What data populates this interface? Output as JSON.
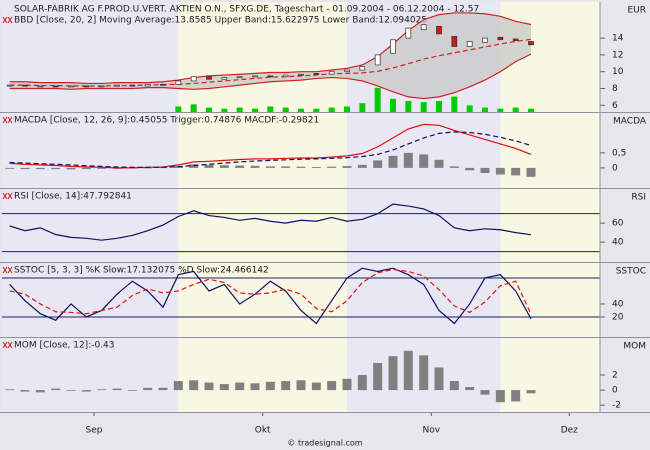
{
  "x_axis": {
    "x": [
      0,
      2,
      4,
      6,
      8,
      10,
      12,
      14,
      16,
      18,
      20,
      22,
      24,
      26,
      28,
      30,
      32,
      34,
      36,
      38,
      40,
      42,
      44,
      46,
      48,
      50,
      52,
      54,
      56,
      58,
      60,
      62,
      64,
      66,
      68
    ],
    "xlim": [
      -1,
      77
    ],
    "xticks": [
      {
        "value": 11,
        "label": "Sep"
      },
      {
        "value": 33,
        "label": "Okt"
      },
      {
        "value": 55,
        "label": "Nov"
      },
      {
        "value": 73,
        "label": "Dez"
      }
    ]
  },
  "watermark": "© tradesignal.com",
  "chart_data": [
    {
      "type": "candlestick",
      "title": "SOLAR-FABRIK AG F.PROD.U.VERT. AKTIEN O.N., SFXG.DE, Tageschart - 01.09.2004 - 06.12.2004 - 12.57",
      "legend": "BBD [Close, 20, 2] Moving Average:13.8585 Upper Band:15.622975 Lower Band:12.094025",
      "axis_label": "EUR",
      "ylim": [
        5.2,
        18.3
      ],
      "yticks": [
        6,
        8,
        10,
        12,
        14
      ],
      "open": [
        8.3,
        8.4,
        8.2,
        8.3,
        8.2,
        8.3,
        8.2,
        8.3,
        8.4,
        8.3,
        8.5,
        8.5,
        8.9,
        9.4,
        9.1,
        9.3,
        9.4,
        9.5,
        9.4,
        9.6,
        9.8,
        9.7,
        10.0,
        10.2,
        10.8,
        12.2,
        14.0,
        15.0,
        15.4,
        14.2,
        13.0,
        13.5,
        14.1,
        13.9,
        13.6
      ],
      "close": [
        8.4,
        8.3,
        8.3,
        8.2,
        8.3,
        8.2,
        8.3,
        8.4,
        8.3,
        8.5,
        8.4,
        8.9,
        9.4,
        9.1,
        9.3,
        9.4,
        9.5,
        9.4,
        9.6,
        9.7,
        9.7,
        10.0,
        10.2,
        10.6,
        12.0,
        13.8,
        15.2,
        15.6,
        14.5,
        13.0,
        13.6,
        14.0,
        13.8,
        13.7,
        13.2
      ],
      "up_color": "#ffffff",
      "down_color": "#d01818",
      "band_fill": "#c8c8c8",
      "series": [
        {
          "style": "line",
          "color": "#d02020",
          "values": [
            8.8,
            8.8,
            8.7,
            8.7,
            8.7,
            8.6,
            8.6,
            8.7,
            8.7,
            8.7,
            8.8,
            9.0,
            9.3,
            9.5,
            9.6,
            9.7,
            9.8,
            9.9,
            9.9,
            10.0,
            10.0,
            10.2,
            10.4,
            10.8,
            11.8,
            13.3,
            14.9,
            16.2,
            16.8,
            17.0,
            17.0,
            16.9,
            16.6,
            16.0,
            15.622975
          ]
        },
        {
          "style": "line",
          "color": "#d02020",
          "values": [
            8.0,
            8.0,
            8.0,
            8.0,
            7.9,
            8.0,
            8.0,
            8.0,
            8.0,
            8.1,
            8.1,
            8.0,
            7.9,
            8.0,
            8.2,
            8.4,
            8.6,
            8.8,
            8.9,
            9.0,
            9.2,
            9.3,
            9.2,
            8.9,
            8.3,
            7.6,
            7.0,
            6.8,
            7.0,
            7.5,
            8.2,
            9.0,
            10.0,
            11.2,
            12.094025
          ]
        },
        {
          "style": "dashed",
          "color": "#d02020",
          "values": [
            8.4,
            8.4,
            8.35,
            8.35,
            8.3,
            8.3,
            8.3,
            8.35,
            8.35,
            8.4,
            8.45,
            8.5,
            8.6,
            8.75,
            8.9,
            9.05,
            9.2,
            9.35,
            9.4,
            9.5,
            9.6,
            9.75,
            9.8,
            9.85,
            10.05,
            10.45,
            10.95,
            11.5,
            11.9,
            12.25,
            12.6,
            12.95,
            13.3,
            13.6,
            13.8585
          ]
        }
      ],
      "volume": {
        "color": "#00cc00",
        "ylim": [
          0,
          100
        ],
        "values": [
          0,
          0,
          0,
          0,
          0,
          0,
          0,
          0,
          0,
          0,
          0,
          5,
          7,
          4,
          3,
          4,
          3,
          5,
          4,
          3,
          3,
          4,
          5,
          8,
          22,
          12,
          10,
          9,
          10,
          14,
          6,
          4,
          3,
          4,
          3
        ]
      }
    },
    {
      "type": "line",
      "legend": "MACDA [Close, 12, 26, 9]:0.45055 Trigger:0.74876 MACDF:-0.29821",
      "axis_label": "MACDA",
      "ylim": [
        -0.67,
        1.83
      ],
      "yticks": [
        {
          "value": 0.5,
          "label": "0,5"
        },
        0
      ],
      "series": [
        {
          "style": "bar",
          "color": "#808080",
          "values": [
            -0.03,
            -0.04,
            -0.04,
            -0.04,
            -0.05,
            -0.04,
            -0.03,
            -0.03,
            -0.02,
            0,
            0.01,
            0.06,
            0.12,
            0.1,
            0.09,
            0.08,
            0.07,
            0.05,
            0.05,
            0.04,
            0.03,
            0.04,
            0.06,
            0.1,
            0.25,
            0.4,
            0.5,
            0.45,
            0.27,
            0.05,
            -0.08,
            -0.17,
            -0.22,
            -0.25,
            -0.29821
          ]
        },
        {
          "style": "line",
          "color": "#e01010",
          "values": [
            0.15,
            0.12,
            0.1,
            0.08,
            0.05,
            0.03,
            0.02,
            0.0,
            0.0,
            0.02,
            0.03,
            0.1,
            0.2,
            0.22,
            0.25,
            0.28,
            0.3,
            0.3,
            0.32,
            0.33,
            0.33,
            0.36,
            0.4,
            0.48,
            0.7,
            1.0,
            1.3,
            1.45,
            1.42,
            1.25,
            1.1,
            0.95,
            0.8,
            0.65,
            0.45055
          ]
        },
        {
          "style": "dashed",
          "color": "#101060",
          "values": [
            0.18,
            0.16,
            0.14,
            0.12,
            0.1,
            0.07,
            0.05,
            0.03,
            0.02,
            0.02,
            0.02,
            0.04,
            0.08,
            0.12,
            0.16,
            0.2,
            0.23,
            0.25,
            0.27,
            0.29,
            0.3,
            0.32,
            0.34,
            0.38,
            0.45,
            0.6,
            0.8,
            1.0,
            1.15,
            1.2,
            1.18,
            1.12,
            1.02,
            0.9,
            0.74876
          ]
        }
      ]
    },
    {
      "type": "line",
      "legend": "RSI [Close, 14]:47.792841",
      "axis_label": "RSI",
      "ylim": [
        19,
        96
      ],
      "yticks": [
        60,
        40
      ],
      "levels": [
        70,
        30
      ],
      "level_color": "#202060",
      "series": [
        {
          "style": "line",
          "color": "#101060",
          "values": [
            57,
            52,
            55,
            48,
            45,
            44,
            42,
            44,
            47,
            52,
            58,
            67,
            73,
            68,
            66,
            63,
            65,
            62,
            60,
            63,
            62,
            66,
            62,
            64,
            70,
            80,
            78,
            75,
            68,
            55,
            52,
            54,
            53,
            50,
            47.792841
          ]
        }
      ]
    },
    {
      "type": "line",
      "legend": "SSTOC [5, 3, 3] %K Slow:17.132075 %D Slow:24.466142",
      "axis_label": "SSTOC",
      "ylim": [
        -10.8,
        103
      ],
      "yticks": [
        40,
        20
      ],
      "levels": [
        80,
        20
      ],
      "level_color": "#202060",
      "series": [
        {
          "style": "line",
          "color": "#101060",
          "values": [
            70,
            45,
            25,
            15,
            40,
            20,
            30,
            55,
            75,
            60,
            35,
            85,
            90,
            60,
            70,
            40,
            55,
            75,
            60,
            30,
            10,
            45,
            80,
            95,
            90,
            95,
            85,
            70,
            30,
            10,
            40,
            80,
            85,
            60,
            17.132075
          ]
        },
        {
          "style": "dashed",
          "color": "#e01010",
          "values": [
            60,
            55,
            40,
            28,
            27,
            25,
            30,
            35,
            53,
            63,
            57,
            60,
            70,
            78,
            73,
            57,
            55,
            57,
            63,
            55,
            33,
            28,
            45,
            73,
            88,
            93,
            90,
            83,
            62,
            37,
            27,
            43,
            68,
            75,
            24.466142
          ]
        }
      ]
    },
    {
      "type": "bar",
      "legend": "MOM [Close, 12]:-0.43",
      "axis_label": "MOM",
      "ylim": [
        -2.9,
        6.9
      ],
      "yticks": [
        2,
        0,
        -2
      ],
      "series": [
        {
          "style": "bar",
          "color": "#808080",
          "values": [
            0.1,
            -0.2,
            -0.3,
            0.2,
            -0.1,
            -0.2,
            0.1,
            0.2,
            -0.1,
            0.3,
            0.3,
            1.2,
            1.3,
            1.0,
            0.8,
            1.0,
            0.9,
            1.1,
            1.2,
            1.3,
            1.0,
            1.2,
            1.5,
            2.0,
            3.6,
            4.5,
            5.2,
            4.6,
            3.0,
            1.2,
            0.4,
            -0.6,
            -1.6,
            -1.5,
            -0.43
          ]
        }
      ]
    }
  ]
}
